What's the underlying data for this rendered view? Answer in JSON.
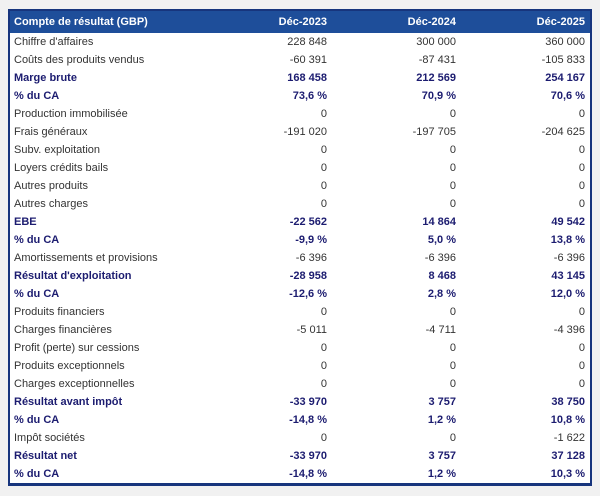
{
  "table": {
    "title": "Compte de résultat (GBP)",
    "columns": [
      "Déc-2023",
      "Déc-2024",
      "Déc-2025"
    ],
    "rows": [
      {
        "label": "Chiffre d'affaires",
        "values": [
          "228 848",
          "300 000",
          "360 000"
        ],
        "bold": false
      },
      {
        "label": "Coûts des produits vendus",
        "values": [
          "-60 391",
          "-87 431",
          "-105 833"
        ],
        "bold": false
      },
      {
        "label": "Marge brute",
        "values": [
          "168 458",
          "212 569",
          "254 167"
        ],
        "bold": true
      },
      {
        "label": "% du CA",
        "values": [
          "73,6 %",
          "70,9 %",
          "70,6 %"
        ],
        "bold": true
      },
      {
        "label": "Production immobilisée",
        "values": [
          "0",
          "0",
          "0"
        ],
        "bold": false
      },
      {
        "label": "Frais généraux",
        "values": [
          "-191 020",
          "-197 705",
          "-204 625"
        ],
        "bold": false
      },
      {
        "label": "Subv. exploitation",
        "values": [
          "0",
          "0",
          "0"
        ],
        "bold": false
      },
      {
        "label": "Loyers crédits bails",
        "values": [
          "0",
          "0",
          "0"
        ],
        "bold": false
      },
      {
        "label": "Autres produits",
        "values": [
          "0",
          "0",
          "0"
        ],
        "bold": false
      },
      {
        "label": "Autres charges",
        "values": [
          "0",
          "0",
          "0"
        ],
        "bold": false
      },
      {
        "label": "EBE",
        "values": [
          "-22 562",
          "14 864",
          "49 542"
        ],
        "bold": true
      },
      {
        "label": "% du CA",
        "values": [
          "-9,9 %",
          "5,0 %",
          "13,8 %"
        ],
        "bold": true
      },
      {
        "label": "Amortissements et provisions",
        "values": [
          "-6 396",
          "-6 396",
          "-6 396"
        ],
        "bold": false
      },
      {
        "label": "Résultat d'exploitation",
        "values": [
          "-28 958",
          "8 468",
          "43 145"
        ],
        "bold": true
      },
      {
        "label": "% du CA",
        "values": [
          "-12,6 %",
          "2,8 %",
          "12,0 %"
        ],
        "bold": true
      },
      {
        "label": "Produits financiers",
        "values": [
          "0",
          "0",
          "0"
        ],
        "bold": false
      },
      {
        "label": "Charges financières",
        "values": [
          "-5 011",
          "-4 711",
          "-4 396"
        ],
        "bold": false
      },
      {
        "label": "Profit (perte) sur cessions",
        "values": [
          "0",
          "0",
          "0"
        ],
        "bold": false
      },
      {
        "label": "Produits exceptionnels",
        "values": [
          "0",
          "0",
          "0"
        ],
        "bold": false
      },
      {
        "label": "Charges exceptionnelles",
        "values": [
          "0",
          "0",
          "0"
        ],
        "bold": false
      },
      {
        "label": "Résultat avant impôt",
        "values": [
          "-33 970",
          "3 757",
          "38 750"
        ],
        "bold": true
      },
      {
        "label": "% du CA",
        "values": [
          "-14,8 %",
          "1,2 %",
          "10,8 %"
        ],
        "bold": true
      },
      {
        "label": "Impôt sociétés",
        "values": [
          "0",
          "0",
          "-1 622"
        ],
        "bold": false
      },
      {
        "label": "Résultat net",
        "values": [
          "-33 970",
          "3 757",
          "37 128"
        ],
        "bold": true
      },
      {
        "label": "% du CA",
        "values": [
          "-14,8 %",
          "1,2 %",
          "10,3 %"
        ],
        "bold": true
      }
    ]
  },
  "colors": {
    "page_bg": "#f1f1f1",
    "table_bg": "#ffffff",
    "header_bg": "#1e4e9a",
    "header_text": "#ffffff",
    "border": "#17357d",
    "row_text": "#333333",
    "bold_row_text": "#1c1c70"
  }
}
